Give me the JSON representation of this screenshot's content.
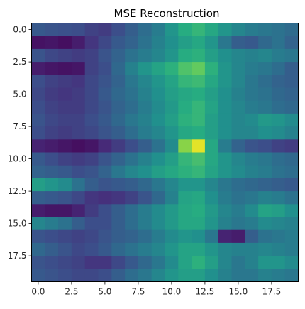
{
  "chart_data": {
    "type": "heatmap",
    "title": "MSE Reconstruction",
    "xlabel": "",
    "ylabel": "",
    "colormap": "viridis",
    "x_ticks": [
      "0.0",
      "2.5",
      "5.0",
      "7.5",
      "10.0",
      "12.5",
      "15.0",
      "17.5"
    ],
    "x_tick_values": [
      0,
      2.5,
      5,
      7.5,
      10,
      12.5,
      15,
      17.5
    ],
    "y_ticks": [
      "0.0",
      "2.5",
      "5.0",
      "7.5",
      "10.0",
      "12.5",
      "15.0",
      "17.5"
    ],
    "y_tick_values": [
      0,
      2.5,
      5,
      7.5,
      10,
      12.5,
      15,
      17.5
    ],
    "xlim": [
      -0.5,
      19.5
    ],
    "ylim": [
      19.5,
      -0.5
    ],
    "value_range": [
      0,
      1
    ],
    "values": [
      [
        0.28,
        0.26,
        0.25,
        0.24,
        0.2,
        0.18,
        0.24,
        0.3,
        0.36,
        0.42,
        0.52,
        0.62,
        0.66,
        0.6,
        0.52,
        0.46,
        0.42,
        0.4,
        0.38,
        0.35
      ],
      [
        0.05,
        0.06,
        0.04,
        0.08,
        0.16,
        0.22,
        0.28,
        0.32,
        0.38,
        0.44,
        0.5,
        0.56,
        0.6,
        0.52,
        0.4,
        0.3,
        0.28,
        0.34,
        0.38,
        0.32
      ],
      [
        0.26,
        0.22,
        0.2,
        0.18,
        0.2,
        0.26,
        0.32,
        0.38,
        0.42,
        0.46,
        0.52,
        0.62,
        0.64,
        0.56,
        0.5,
        0.46,
        0.44,
        0.46,
        0.42,
        0.4
      ],
      [
        0.08,
        0.06,
        0.05,
        0.06,
        0.2,
        0.24,
        0.34,
        0.44,
        0.52,
        0.58,
        0.64,
        0.72,
        0.76,
        0.64,
        0.52,
        0.46,
        0.42,
        0.4,
        0.36,
        0.3
      ],
      [
        0.24,
        0.2,
        0.18,
        0.16,
        0.22,
        0.26,
        0.32,
        0.4,
        0.46,
        0.52,
        0.58,
        0.66,
        0.68,
        0.6,
        0.52,
        0.46,
        0.4,
        0.36,
        0.32,
        0.3
      ],
      [
        0.22,
        0.18,
        0.16,
        0.18,
        0.22,
        0.28,
        0.34,
        0.38,
        0.44,
        0.5,
        0.56,
        0.6,
        0.62,
        0.56,
        0.5,
        0.44,
        0.4,
        0.38,
        0.34,
        0.32
      ],
      [
        0.24,
        0.2,
        0.18,
        0.18,
        0.22,
        0.26,
        0.32,
        0.36,
        0.42,
        0.48,
        0.54,
        0.62,
        0.66,
        0.58,
        0.5,
        0.46,
        0.42,
        0.4,
        0.36,
        0.34
      ],
      [
        0.26,
        0.22,
        0.2,
        0.2,
        0.24,
        0.28,
        0.34,
        0.4,
        0.44,
        0.5,
        0.56,
        0.64,
        0.66,
        0.56,
        0.5,
        0.46,
        0.48,
        0.54,
        0.52,
        0.48
      ],
      [
        0.24,
        0.2,
        0.18,
        0.2,
        0.22,
        0.26,
        0.3,
        0.36,
        0.42,
        0.46,
        0.52,
        0.6,
        0.62,
        0.56,
        0.5,
        0.46,
        0.46,
        0.5,
        0.48,
        0.44
      ],
      [
        0.1,
        0.08,
        0.06,
        0.04,
        0.06,
        0.12,
        0.18,
        0.24,
        0.3,
        0.38,
        0.48,
        0.82,
        0.96,
        0.6,
        0.42,
        0.32,
        0.26,
        0.24,
        0.2,
        0.18
      ],
      [
        0.28,
        0.24,
        0.2,
        0.18,
        0.2,
        0.26,
        0.32,
        0.38,
        0.44,
        0.5,
        0.56,
        0.66,
        0.7,
        0.6,
        0.52,
        0.46,
        0.42,
        0.4,
        0.36,
        0.34
      ],
      [
        0.32,
        0.3,
        0.28,
        0.24,
        0.26,
        0.32,
        0.4,
        0.46,
        0.5,
        0.56,
        0.6,
        0.64,
        0.66,
        0.58,
        0.52,
        0.48,
        0.44,
        0.42,
        0.38,
        0.36
      ],
      [
        0.56,
        0.52,
        0.48,
        0.38,
        0.3,
        0.26,
        0.28,
        0.3,
        0.34,
        0.4,
        0.46,
        0.52,
        0.52,
        0.46,
        0.4,
        0.36,
        0.34,
        0.32,
        0.3,
        0.28
      ],
      [
        0.3,
        0.28,
        0.26,
        0.22,
        0.16,
        0.14,
        0.16,
        0.2,
        0.26,
        0.34,
        0.44,
        0.58,
        0.6,
        0.5,
        0.42,
        0.38,
        0.4,
        0.44,
        0.42,
        0.38
      ],
      [
        0.08,
        0.06,
        0.06,
        0.1,
        0.18,
        0.24,
        0.3,
        0.36,
        0.42,
        0.48,
        0.54,
        0.6,
        0.62,
        0.54,
        0.46,
        0.42,
        0.48,
        0.58,
        0.56,
        0.5
      ],
      [
        0.46,
        0.42,
        0.38,
        0.3,
        0.24,
        0.24,
        0.3,
        0.36,
        0.42,
        0.48,
        0.54,
        0.6,
        0.6,
        0.52,
        0.44,
        0.4,
        0.42,
        0.48,
        0.46,
        0.44
      ],
      [
        0.26,
        0.24,
        0.22,
        0.2,
        0.22,
        0.26,
        0.3,
        0.32,
        0.36,
        0.42,
        0.48,
        0.52,
        0.5,
        0.4,
        0.1,
        0.08,
        0.3,
        0.38,
        0.4,
        0.42
      ],
      [
        0.34,
        0.3,
        0.26,
        0.22,
        0.24,
        0.28,
        0.34,
        0.38,
        0.42,
        0.46,
        0.52,
        0.58,
        0.58,
        0.52,
        0.46,
        0.44,
        0.44,
        0.46,
        0.44,
        0.42
      ],
      [
        0.26,
        0.24,
        0.22,
        0.2,
        0.16,
        0.16,
        0.22,
        0.28,
        0.34,
        0.4,
        0.48,
        0.58,
        0.64,
        0.56,
        0.46,
        0.4,
        0.44,
        0.52,
        0.52,
        0.48
      ],
      [
        0.28,
        0.26,
        0.24,
        0.22,
        0.22,
        0.24,
        0.3,
        0.36,
        0.4,
        0.46,
        0.52,
        0.56,
        0.56,
        0.5,
        0.44,
        0.4,
        0.4,
        0.44,
        0.42,
        0.4
      ]
    ]
  }
}
